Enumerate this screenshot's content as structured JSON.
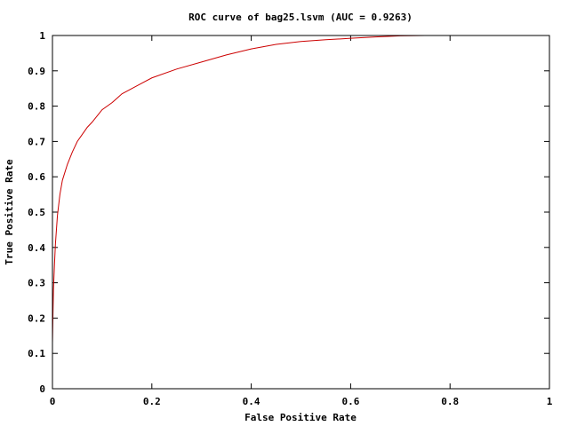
{
  "chart_data": {
    "type": "line",
    "title": "ROC curve of bag25.lsvm (AUC = 0.9263)",
    "xlabel": "False Positive Rate",
    "ylabel": "True Positive Rate",
    "xlim": [
      0,
      1
    ],
    "ylim": [
      0,
      1
    ],
    "xticks": [
      0,
      0.2,
      0.4,
      0.6,
      0.8,
      1
    ],
    "xtick_labels": [
      "0",
      "0.2",
      "0.4",
      "0.6",
      "0.8",
      "1"
    ],
    "yticks": [
      0,
      0.1,
      0.2,
      0.3,
      0.4,
      0.5,
      0.6,
      0.7,
      0.8,
      0.9,
      1
    ],
    "ytick_labels": [
      "0",
      "0.1",
      "0.2",
      "0.3",
      "0.4",
      "0.5",
      "0.6",
      "0.7",
      "0.8",
      "0.9",
      "1"
    ],
    "grid": false,
    "legend": "none",
    "series": [
      {
        "color": "#cc0000",
        "x": [
          0,
          0.001,
          0.002,
          0.004,
          0.006,
          0.008,
          0.01,
          0.015,
          0.02,
          0.03,
          0.04,
          0.05,
          0.06,
          0.07,
          0.08,
          0.1,
          0.12,
          0.14,
          0.16,
          0.18,
          0.2,
          0.25,
          0.3,
          0.35,
          0.4,
          0.45,
          0.5,
          0.55,
          0.6,
          0.65,
          0.7,
          0.75
        ],
        "y": [
          0.13,
          0.21,
          0.28,
          0.35,
          0.41,
          0.45,
          0.49,
          0.55,
          0.59,
          0.635,
          0.67,
          0.7,
          0.72,
          0.74,
          0.755,
          0.79,
          0.81,
          0.835,
          0.85,
          0.865,
          0.88,
          0.905,
          0.925,
          0.945,
          0.962,
          0.975,
          0.983,
          0.988,
          0.992,
          0.996,
          0.999,
          1.0
        ]
      }
    ]
  }
}
